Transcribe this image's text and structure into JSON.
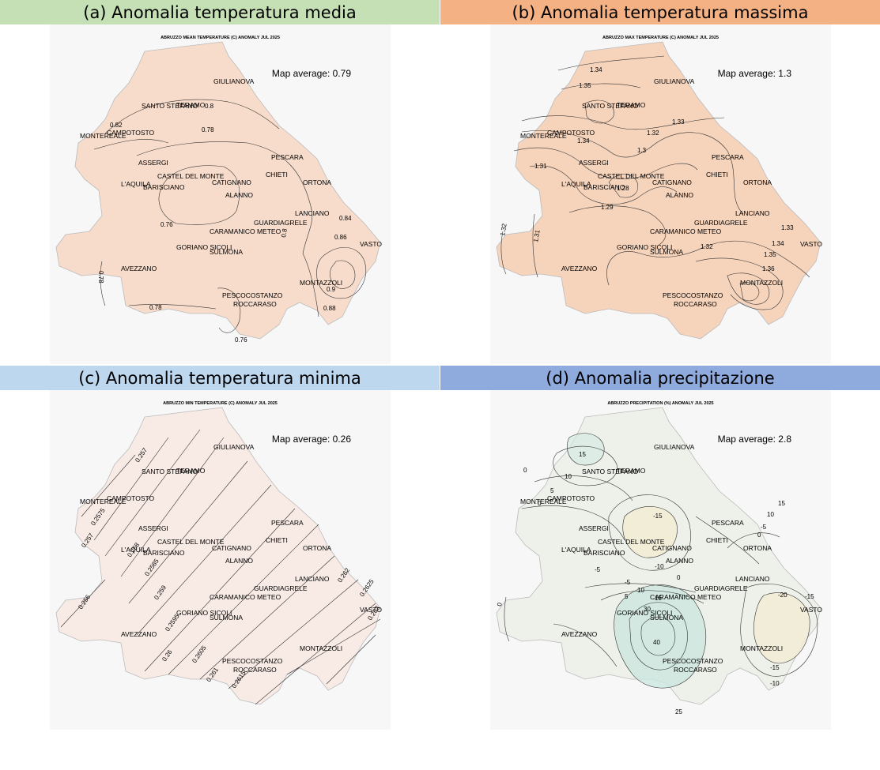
{
  "panels": [
    {
      "id": "a",
      "title": "(a) Anomalia temperatura media",
      "subtitle": "ABRUZZO MEAN TEMPERATURE (C) ANOMALY JUL 2025",
      "average_label": "Map average: 0.79",
      "average_value": 0.79,
      "band_color": "#c5e0b4",
      "fill_color": "#f8dccb",
      "contour_labels": [
        "0.8",
        "0.82",
        "0.78",
        "0.76",
        "0.84",
        "0.86",
        "0.9",
        "0.88",
        "0.78",
        "0.78",
        "0.76",
        "0.8"
      ]
    },
    {
      "id": "b",
      "title": "(b) Anomalia temperatura massima",
      "subtitle": "ABRUZZO MAX TEMPERATURE (C) ANOMALY JUL 2025",
      "average_label": "Map average: 1.3",
      "average_value": 1.3,
      "band_color": "#f4b183",
      "fill_color": "#f6d3bb",
      "contour_labels": [
        "1.34",
        "1.35",
        "1.33",
        "1.34",
        "1.32",
        "1.3",
        "1.31",
        "1.28",
        "1.29",
        "1.32",
        "1.31",
        "1.33",
        "1.34",
        "1.35",
        "1.36",
        "1.32"
      ]
    },
    {
      "id": "c",
      "title": "(c) Anomalia temperatura minima",
      "subtitle": "ABRUZZO MIN TEMPERATURE (C) ANOMALY JUL 2025",
      "average_label": "Map average: 0.26",
      "average_value": 0.26,
      "band_color": "#bdd7ee",
      "fill_color": "#f8ebe5",
      "contour_labels": [
        "0.257",
        "0.2575",
        "0.258",
        "0.2585",
        "0.259",
        "0.2595",
        "0.26",
        "0.2605",
        "0.261",
        "0.2615",
        "0.262",
        "0.2625",
        "0.263",
        "0.256",
        "0.257"
      ]
    },
    {
      "id": "d",
      "title": "(d) Anomalia precipitazione",
      "subtitle": "ABRUZZO PRECIPITATION (%) ANOMALY JUL 2025",
      "average_label": "Map average: 2.8",
      "average_value": 2.8,
      "band_color": "#8faadc",
      "fill_color": "#eef0ea",
      "contour_labels": [
        "15",
        "10",
        "5",
        "0",
        "0",
        "-15",
        "15",
        "10",
        "0",
        "-5",
        "-5",
        "-10",
        "-5",
        "5",
        "10",
        "15",
        "0",
        "30",
        "40",
        "25",
        "-20",
        "-15",
        "-15",
        "-10",
        "0"
      ]
    }
  ],
  "cities": [
    "GIULIANOVA",
    "SANTO STEFANO",
    "TERAMO",
    "CAMPOTOSTO",
    "MONTEREALE",
    "ASSERGI",
    "PESCARA",
    "CASTEL DEL MONTE",
    "CHIETI",
    "L'AQUILA",
    "CATIGNANO",
    "BARISCIANO",
    "ORTONA",
    "ALANNO",
    "LANCIANO",
    "GUARDIAGRELE",
    "CARAMANICO METEO",
    "GORIANO SICOLI",
    "SULMONA",
    "VASTO",
    "AVEZZANO",
    "MONTAZZOLI",
    "PESCOCOSTANZO",
    "ROCCARASO"
  ],
  "region_outline_color": "#bbbbbb",
  "contour_color": "#333333"
}
